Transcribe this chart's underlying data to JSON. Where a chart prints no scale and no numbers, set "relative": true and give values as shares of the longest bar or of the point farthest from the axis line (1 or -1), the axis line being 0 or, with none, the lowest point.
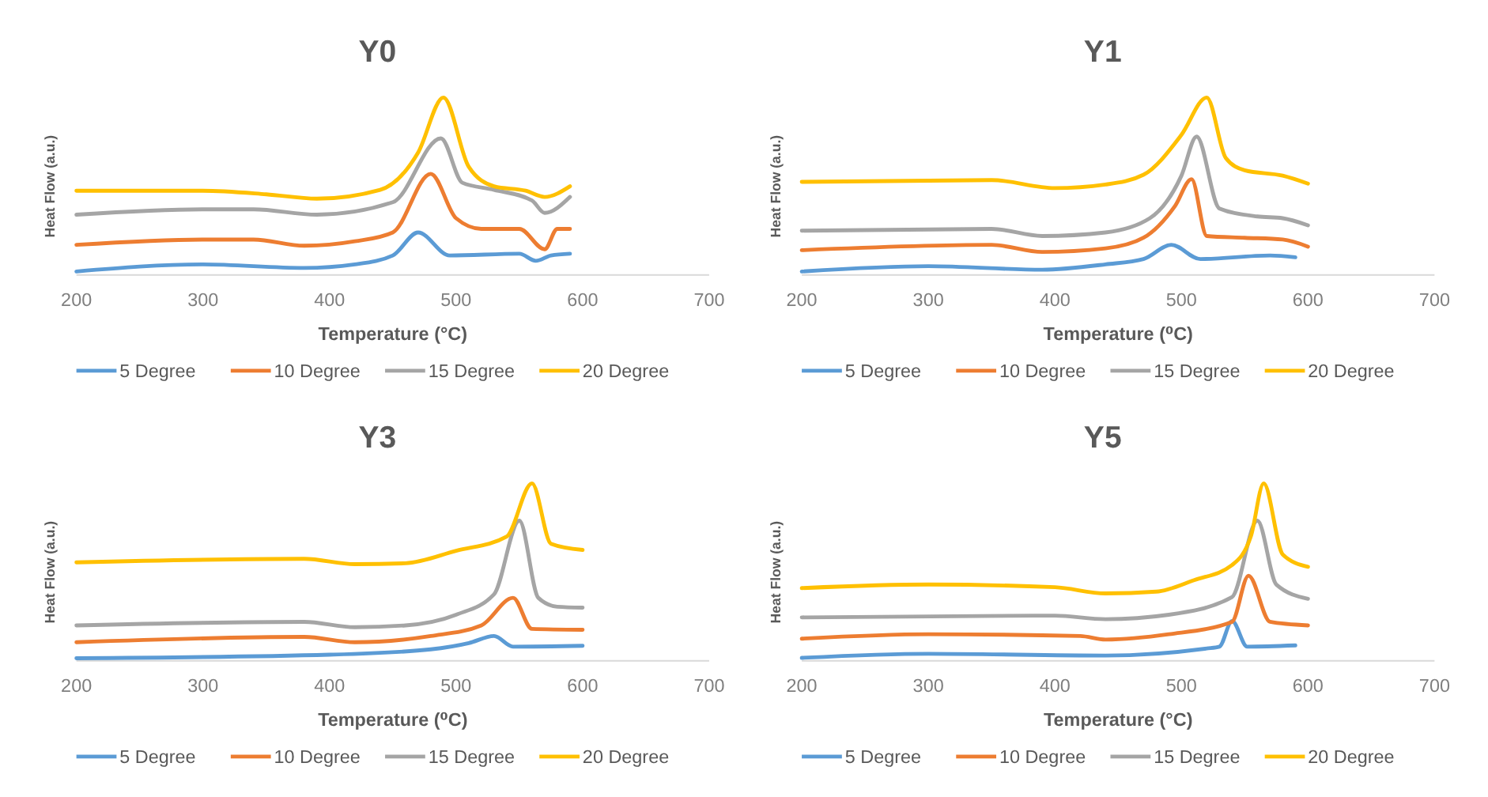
{
  "chart_data": [
    {
      "type": "line",
      "title": "Y0",
      "xlabel": "Temperature (°C)",
      "ylabel": "Heat Flow (a.u.)",
      "relative": true,
      "xlim": [
        200,
        700
      ],
      "xticks": [
        200,
        300,
        400,
        500,
        600,
        700
      ],
      "tick_labels": "x",
      "legend": "bottom",
      "series": [
        {
          "name": "5 Degree",
          "color": "#5b9bd5",
          "x": [
            200,
            300,
            380,
            420,
            450,
            470,
            495,
            550,
            563,
            575,
            590
          ],
          "values": [
            0.02,
            0.06,
            0.04,
            0.06,
            0.11,
            0.24,
            0.11,
            0.12,
            0.08,
            0.11,
            0.12
          ]
        },
        {
          "name": "10 Degree",
          "color": "#ed7d31",
          "x": [
            200,
            300,
            340,
            380,
            420,
            450,
            480,
            500,
            520,
            550,
            570,
            580,
            590
          ],
          "values": [
            0.17,
            0.2,
            0.2,
            0.165,
            0.19,
            0.24,
            0.57,
            0.32,
            0.26,
            0.26,
            0.145,
            0.26,
            0.26
          ]
        },
        {
          "name": "15 Degree",
          "color": "#a5a5a5",
          "x": [
            200,
            300,
            340,
            390,
            450,
            488,
            505,
            530,
            560,
            570,
            590
          ],
          "values": [
            0.34,
            0.37,
            0.37,
            0.34,
            0.41,
            0.77,
            0.52,
            0.48,
            0.42,
            0.35,
            0.44
          ]
        },
        {
          "name": "20 Degree",
          "color": "#ffc000",
          "x": [
            200,
            300,
            350,
            390,
            440,
            470,
            490,
            510,
            530,
            555,
            570,
            590
          ],
          "values": [
            0.475,
            0.475,
            0.455,
            0.43,
            0.48,
            0.69,
            1,
            0.61,
            0.5,
            0.475,
            0.44,
            0.5
          ]
        }
      ]
    },
    {
      "type": "line",
      "title": "Y1",
      "xlabel": "Temperature (⁰C)",
      "ylabel": "Heat Flow (a.u.)",
      "relative": true,
      "xlim": [
        200,
        700
      ],
      "xticks": [
        200,
        300,
        400,
        500,
        600,
        700
      ],
      "tick_labels": "x",
      "legend": "bottom",
      "series": [
        {
          "name": "5 Degree",
          "color": "#5b9bd5",
          "x": [
            200,
            300,
            390,
            440,
            470,
            492,
            515,
            570,
            590
          ],
          "values": [
            0.02,
            0.05,
            0.03,
            0.06,
            0.09,
            0.17,
            0.09,
            0.11,
            0.1
          ]
        },
        {
          "name": "10 Degree",
          "color": "#ed7d31",
          "x": [
            200,
            350,
            390,
            440,
            470,
            495,
            508,
            520,
            550,
            580,
            600
          ],
          "values": [
            0.14,
            0.17,
            0.13,
            0.15,
            0.21,
            0.39,
            0.54,
            0.22,
            0.21,
            0.2,
            0.16
          ]
        },
        {
          "name": "15 Degree",
          "color": "#a5a5a5",
          "x": [
            200,
            350,
            390,
            440,
            475,
            500,
            512,
            530,
            560,
            580,
            600
          ],
          "values": [
            0.25,
            0.26,
            0.22,
            0.24,
            0.32,
            0.56,
            0.78,
            0.375,
            0.33,
            0.32,
            0.28
          ]
        },
        {
          "name": "20 Degree",
          "color": "#ffc000",
          "x": [
            200,
            350,
            400,
            440,
            470,
            500,
            520,
            535,
            550,
            580,
            600
          ],
          "values": [
            0.525,
            0.535,
            0.49,
            0.51,
            0.565,
            0.79,
            1,
            0.66,
            0.59,
            0.56,
            0.515
          ]
        }
      ]
    },
    {
      "type": "line",
      "title": "Y3",
      "xlabel": "Temperature (⁰C)",
      "ylabel": "Heat Flow (a.u.)",
      "relative": true,
      "xlim": [
        200,
        700
      ],
      "xticks": [
        200,
        300,
        400,
        500,
        600,
        700
      ],
      "tick_labels": "x",
      "legend": "bottom",
      "series": [
        {
          "name": "5 Degree",
          "color": "#5b9bd5",
          "x": [
            200,
            400,
            480,
            510,
            530,
            545,
            600
          ],
          "values": [
            0.015,
            0.035,
            0.065,
            0.1,
            0.14,
            0.08,
            0.085
          ]
        },
        {
          "name": "10 Degree",
          "color": "#ed7d31",
          "x": [
            200,
            380,
            420,
            480,
            520,
            545,
            560,
            600
          ],
          "values": [
            0.105,
            0.135,
            0.105,
            0.14,
            0.2,
            0.355,
            0.18,
            0.175
          ]
        },
        {
          "name": "15 Degree",
          "color": "#a5a5a5",
          "x": [
            200,
            380,
            420,
            460,
            500,
            530,
            550,
            565,
            580,
            600
          ],
          "values": [
            0.2,
            0.22,
            0.19,
            0.2,
            0.26,
            0.375,
            0.79,
            0.355,
            0.305,
            0.3
          ]
        },
        {
          "name": "20 Degree",
          "color": "#ffc000",
          "x": [
            200,
            380,
            420,
            460,
            500,
            540,
            560,
            575,
            600
          ],
          "values": [
            0.555,
            0.575,
            0.545,
            0.55,
            0.62,
            0.7,
            1,
            0.66,
            0.625
          ]
        }
      ]
    },
    {
      "type": "line",
      "title": "Y5",
      "xlabel": "Temperature (°C)",
      "ylabel": "Heat Flow (a.u.)",
      "relative": true,
      "xlim": [
        200,
        700
      ],
      "xticks": [
        200,
        300,
        400,
        500,
        600,
        700
      ],
      "tick_labels": "x",
      "legend": "bottom",
      "series": [
        {
          "name": "5 Degree",
          "color": "#5b9bd5",
          "x": [
            200,
            300,
            440,
            520,
            530,
            540,
            552,
            590
          ],
          "values": [
            0.017,
            0.04,
            0.03,
            0.07,
            0.08,
            0.225,
            0.08,
            0.087
          ]
        },
        {
          "name": "10 Degree",
          "color": "#ed7d31",
          "x": [
            200,
            300,
            420,
            440,
            490,
            540,
            553,
            570,
            600
          ],
          "values": [
            0.125,
            0.15,
            0.14,
            0.12,
            0.15,
            0.22,
            0.48,
            0.22,
            0.2
          ]
        },
        {
          "name": "15 Degree",
          "color": "#a5a5a5",
          "x": [
            200,
            400,
            440,
            490,
            540,
            560,
            575,
            600
          ],
          "values": [
            0.245,
            0.255,
            0.235,
            0.26,
            0.36,
            0.79,
            0.43,
            0.35
          ]
        },
        {
          "name": "20 Degree",
          "color": "#ffc000",
          "x": [
            200,
            300,
            400,
            440,
            480,
            510,
            540,
            555,
            565,
            580,
            600
          ],
          "values": [
            0.41,
            0.43,
            0.415,
            0.38,
            0.39,
            0.455,
            0.54,
            0.705,
            1,
            0.6,
            0.53
          ]
        }
      ]
    }
  ]
}
